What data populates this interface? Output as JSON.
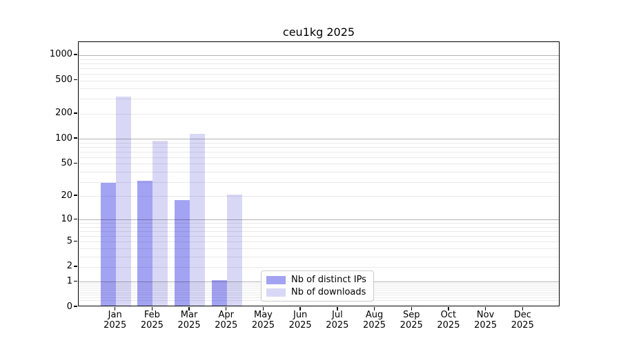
{
  "figure": {
    "title": "ceu1kg 2025"
  },
  "chart_data": {
    "type": "bar",
    "title": "ceu1kg 2025",
    "categories": [
      "Jan",
      "Feb",
      "Mar",
      "Apr",
      "May",
      "Jun",
      "Jul",
      "Aug",
      "Sep",
      "Oct",
      "Nov",
      "Dec"
    ],
    "category_year": "2025",
    "series": [
      {
        "name": "Nb of distinct IPs",
        "color": "#a3a3f3",
        "values": [
          28,
          30,
          17,
          1,
          0,
          0,
          0,
          0,
          0,
          0,
          0,
          0
        ]
      },
      {
        "name": "Nb of downloads",
        "color": "#d8d8f6",
        "values": [
          310,
          92,
          111,
          20,
          0,
          0,
          0,
          0,
          0,
          0,
          0,
          0
        ]
      }
    ],
    "xlabel": "",
    "ylabel": "",
    "yscale": "log(value+1)",
    "yticks": [
      0,
      1,
      2,
      5,
      10,
      20,
      50,
      100,
      200,
      500,
      1000
    ],
    "ylim": [
      0,
      1440
    ],
    "grid": "horizontal, major and minor",
    "legend_position": "lower center"
  },
  "colors": {
    "background": "#ffffff",
    "axis": "#000000",
    "grid_major": "rgba(0,0,0,0.30)",
    "grid_minor": "rgba(0,0,0,0.085)",
    "legend_border": "#cbcbcb"
  }
}
